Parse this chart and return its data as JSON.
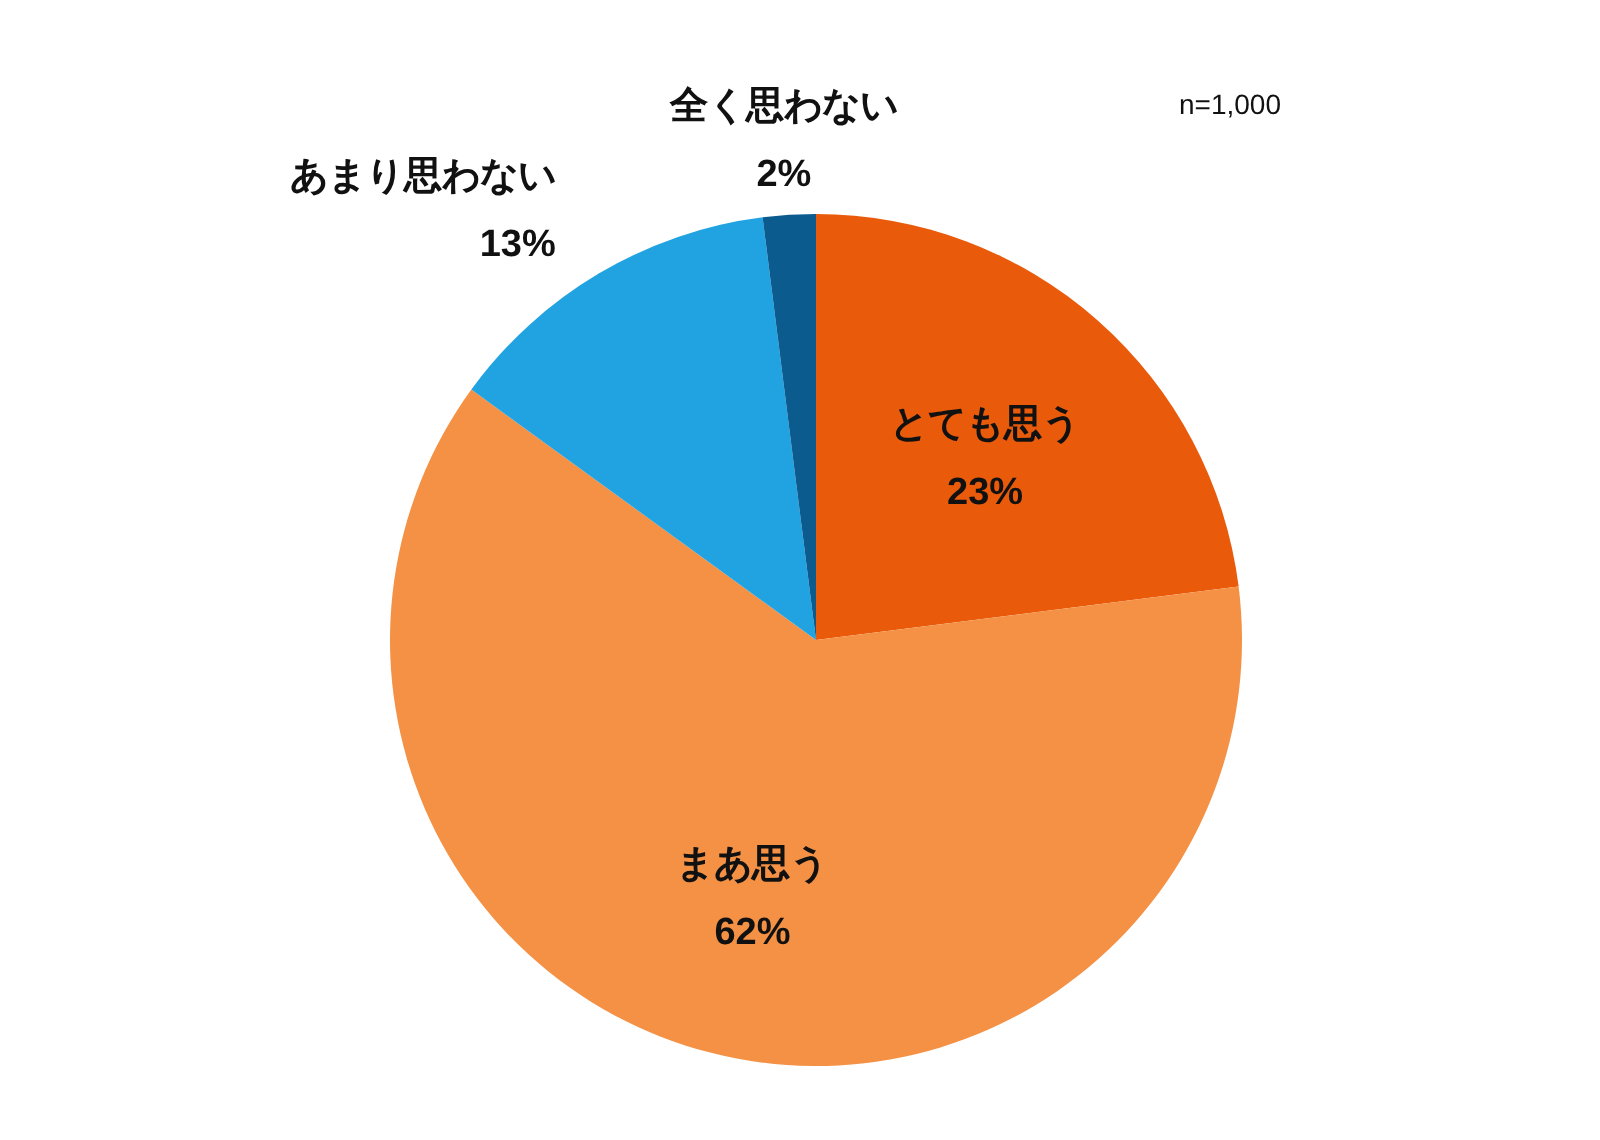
{
  "chart_data": {
    "type": "pie",
    "categories": [
      "とても思う",
      "まあ思う",
      "あまり思わない",
      "全く思わない"
    ],
    "values": [
      23,
      62,
      13,
      2
    ],
    "colors": [
      "#e95b0b",
      "#f49145",
      "#21a3e1",
      "#0b5b8f"
    ],
    "value_labels": [
      "23%",
      "62%",
      "13%",
      "2%"
    ],
    "annotations": [
      "n=1,000"
    ]
  }
}
